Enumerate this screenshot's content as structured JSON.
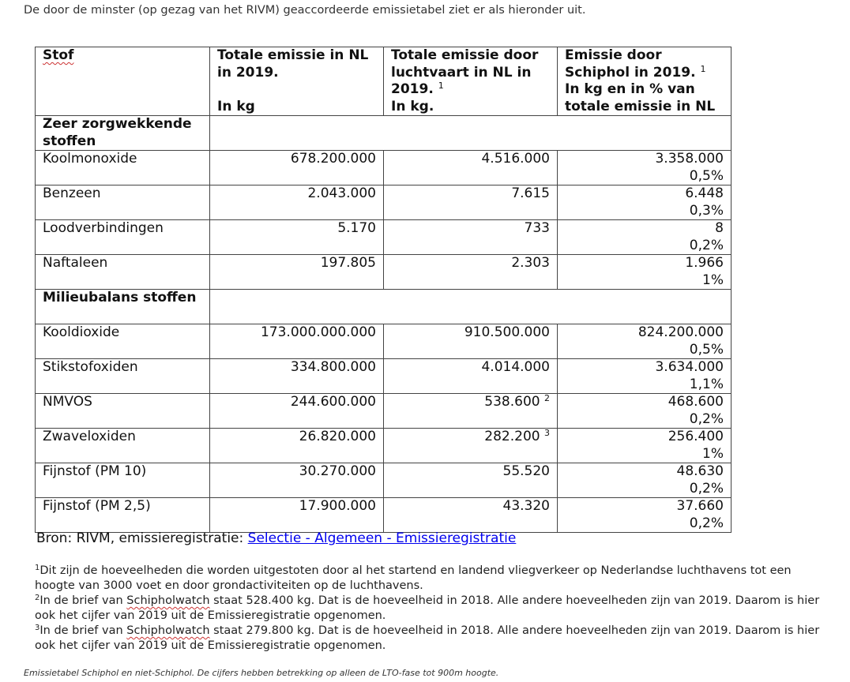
{
  "intro": "De door de minster (op gezag van het RIVM) geaccordeerde emissietabel ziet er als hieronder uit.",
  "table": {
    "headers": [
      {
        "line1": "Stof",
        "line2": ""
      },
      {
        "line1": "Totale emissie in NL in 2019.",
        "line2": "In kg"
      },
      {
        "line1": "Totale emissie door luchtvaart in NL in 2019.",
        "sup": "1",
        "line2": "In kg."
      },
      {
        "line1": "Emissie door Schiphol in 2019.",
        "sup": "1",
        "line2": "In kg en in % van totale emissie in NL"
      }
    ],
    "groups": [
      {
        "label": "Zeer zorgwekkende stoffen",
        "rows": [
          {
            "stof": "Koolmonoxide",
            "nl": "678.200.000",
            "lucht": "4.516.000",
            "lucht_sup": "",
            "schiphol": "3.358.000",
            "pct": "0,5%"
          },
          {
            "stof": "Benzeen",
            "nl": "2.043.000",
            "lucht": "7.615",
            "lucht_sup": "",
            "schiphol": "6.448",
            "pct": "0,3%"
          },
          {
            "stof": "Loodverbindingen",
            "nl": "5.170",
            "lucht": "733",
            "lucht_sup": "",
            "schiphol": "8",
            "pct": "0,2%"
          },
          {
            "stof": "Naftaleen",
            "nl": "197.805",
            "lucht": "2.303",
            "lucht_sup": "",
            "schiphol": "1.966",
            "pct": "1%"
          }
        ]
      },
      {
        "label": "Milieubalans stoffen",
        "rows": [
          {
            "stof": "Kooldioxide",
            "nl": "173.000.000.000",
            "lucht": "910.500.000",
            "lucht_sup": "",
            "schiphol": "824.200.000",
            "pct": "0,5%"
          },
          {
            "stof": "Stikstofoxiden",
            "nl": "334.800.000",
            "lucht": "4.014.000",
            "lucht_sup": "",
            "schiphol": "3.634.000",
            "pct": "1,1%"
          },
          {
            "stof": "NMVOS",
            "nl": "244.600.000",
            "lucht": "538.600",
            "lucht_sup": "2",
            "schiphol": "468.600",
            "pct": "0,2%"
          },
          {
            "stof": "Zwaveloxiden",
            "nl": "26.820.000",
            "lucht": "282.200",
            "lucht_sup": "3",
            "schiphol": "256.400",
            "pct": "1%"
          },
          {
            "stof": "Fijnstof (PM 10)",
            "nl": "30.270.000",
            "lucht": "55.520",
            "lucht_sup": "",
            "schiphol": "48.630",
            "pct": "0,2%"
          },
          {
            "stof": "Fijnstof (PM 2,5)",
            "nl": "17.900.000",
            "lucht": "43.320",
            "lucht_sup": "",
            "schiphol": "37.660",
            "pct": "0,2%"
          }
        ]
      }
    ]
  },
  "source": {
    "prefix": "Bron: RIVM, emissieregistratie: ",
    "link": "Selectie - Algemeen - Emissieregistratie"
  },
  "notes": [
    {
      "num": "1",
      "text": "Dit zijn de hoeveelheden die worden uitgestoten door al het startend en landend vliegverkeer op Nederlandse luchthavens tot een hoogte van 3000 voet en door grondactiviteiten op de luchthavens."
    },
    {
      "num": "2",
      "pre": "In de brief van ",
      "word": "Schipholwatch",
      "text": " staat 528.400 kg. Dat is de hoeveelheid in 2018. Alle andere hoeveelheden zijn van 2019. Daarom is hier ook het cijfer van 2019 uit de Emissieregistratie opgenomen."
    },
    {
      "num": "3",
      "pre": "In de brief van ",
      "word": "Schipholwatch",
      "text": " staat 279.800 kg. Dat is de hoeveelheid in 2018. Alle andere hoeveelheden zijn van 2019. Daarom is hier ook het cijfer van 2019 uit de Emissieregistratie opgenomen."
    }
  ],
  "caption": "Emissietabel Schiphol en niet-Schiphol. De cijfers hebben betrekking op alleen de LTO-fase tot 900m hoogte."
}
